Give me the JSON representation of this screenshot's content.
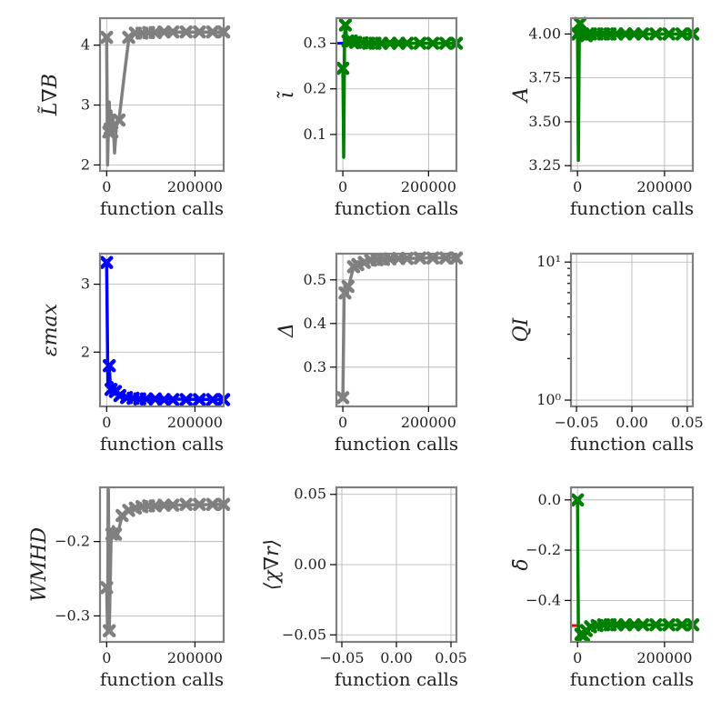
{
  "colors": {
    "gray": "#808080",
    "green": "#008000",
    "blue": "#0000ff",
    "red": "#ff0000"
  },
  "chart_data": [
    {
      "type": "line",
      "ylabel": "L̃∇B",
      "xlabel": "function calls",
      "xlim": [
        -15000,
        265000
      ],
      "ylim": [
        1.9,
        4.45
      ],
      "xticks": [
        0,
        200000
      ],
      "xtick_labels": [
        "0",
        "200000"
      ],
      "yticks": [
        2,
        3,
        4
      ],
      "ytick_labels": [
        "2",
        "3",
        "4"
      ],
      "grid": true,
      "series": [
        {
          "color": "#808080",
          "line": [
            [
              0,
              4.13
            ],
            [
              2000,
              2.0
            ],
            [
              4000,
              2.6
            ],
            [
              6000,
              3.05
            ],
            [
              8000,
              2.55
            ],
            [
              10000,
              2.9
            ],
            [
              12000,
              2.5
            ],
            [
              14000,
              2.8
            ],
            [
              18000,
              2.2
            ],
            [
              22000,
              2.65
            ],
            [
              28000,
              2.75
            ],
            [
              40000,
              3.5
            ],
            [
              50000,
              4.1
            ],
            [
              60000,
              4.17
            ],
            [
              75000,
              4.2
            ],
            [
              100000,
              4.21
            ],
            [
              130000,
              4.22
            ],
            [
              160000,
              4.22
            ],
            [
              200000,
              4.22
            ],
            [
              230000,
              4.22
            ],
            [
              265000,
              4.22
            ]
          ],
          "markers": [
            [
              0,
              4.13
            ],
            [
              5000,
              2.55
            ],
            [
              8000,
              2.6
            ],
            [
              12000,
              2.55
            ],
            [
              28000,
              2.75
            ],
            [
              50000,
              4.13
            ],
            [
              65000,
              4.2
            ],
            [
              80000,
              4.2
            ],
            [
              95000,
              4.21
            ],
            [
              110000,
              4.21
            ],
            [
              130000,
              4.22
            ],
            [
              150000,
              4.22
            ],
            [
              180000,
              4.22
            ],
            [
              210000,
              4.22
            ],
            [
              240000,
              4.22
            ],
            [
              265000,
              4.22
            ]
          ]
        }
      ]
    },
    {
      "type": "line",
      "ylabel": "ι̃",
      "xlabel": "function calls",
      "xlim": [
        -15000,
        265000
      ],
      "ylim": [
        0.02,
        0.355
      ],
      "xticks": [
        0,
        200000
      ],
      "xtick_labels": [
        "0",
        "200000"
      ],
      "yticks": [
        0.1,
        0.2,
        0.3
      ],
      "ytick_labels": [
        "0.1",
        "0.2",
        "0.3"
      ],
      "grid": true,
      "target": {
        "value": 0.3,
        "color": "#0000ff",
        "x": [
          -15000,
          0
        ]
      },
      "series": [
        {
          "color": "#008000",
          "line": [
            [
              0,
              0.245
            ],
            [
              2000,
              0.05
            ],
            [
              4000,
              0.31
            ],
            [
              6000,
              0.34
            ],
            [
              10000,
              0.3
            ],
            [
              15000,
              0.31
            ],
            [
              20000,
              0.305
            ],
            [
              30000,
              0.302
            ],
            [
              40000,
              0.301
            ],
            [
              60000,
              0.3
            ],
            [
              100000,
              0.3
            ],
            [
              265000,
              0.3
            ]
          ],
          "markers": [
            [
              0,
              0.245
            ],
            [
              6000,
              0.34
            ],
            [
              12000,
              0.305
            ],
            [
              20000,
              0.305
            ],
            [
              30000,
              0.302
            ],
            [
              45000,
              0.301
            ],
            [
              60000,
              0.3
            ],
            [
              75000,
              0.3
            ],
            [
              90000,
              0.3
            ],
            [
              110000,
              0.3
            ],
            [
              130000,
              0.3
            ],
            [
              150000,
              0.3
            ],
            [
              180000,
              0.3
            ],
            [
              210000,
              0.3
            ],
            [
              240000,
              0.3
            ],
            [
              265000,
              0.3
            ]
          ]
        }
      ]
    },
    {
      "type": "line",
      "ylabel": "A",
      "xlabel": "function calls",
      "xlim": [
        -15000,
        265000
      ],
      "ylim": [
        3.22,
        4.09
      ],
      "xticks": [
        0,
        200000
      ],
      "xtick_labels": [
        "0",
        "200000"
      ],
      "yticks": [
        3.25,
        3.5,
        3.75,
        4.0
      ],
      "ytick_labels": [
        "3.25",
        "3.50",
        "3.75",
        "4.00"
      ],
      "grid": true,
      "series": [
        {
          "color": "#008000",
          "line": [
            [
              0,
              4.0
            ],
            [
              2000,
              3.28
            ],
            [
              4000,
              3.95
            ],
            [
              6000,
              4.06
            ],
            [
              10000,
              3.98
            ],
            [
              15000,
              4.02
            ],
            [
              20000,
              3.99
            ],
            [
              30000,
              4.0
            ],
            [
              265000,
              4.0
            ]
          ],
          "markers": [
            [
              0,
              4.0
            ],
            [
              6000,
              4.06
            ],
            [
              12000,
              4.0
            ],
            [
              20000,
              3.99
            ],
            [
              30000,
              4.0
            ],
            [
              45000,
              4.0
            ],
            [
              60000,
              4.0
            ],
            [
              75000,
              4.0
            ],
            [
              90000,
              4.0
            ],
            [
              110000,
              4.0
            ],
            [
              130000,
              4.0
            ],
            [
              150000,
              4.0
            ],
            [
              180000,
              4.0
            ],
            [
              210000,
              4.0
            ],
            [
              240000,
              4.0
            ],
            [
              265000,
              4.0
            ]
          ]
        }
      ]
    },
    {
      "type": "line",
      "ylabel": "εmax",
      "xlabel": "function calls",
      "xlim": [
        -15000,
        265000
      ],
      "ylim": [
        1.2,
        3.45
      ],
      "xticks": [
        0,
        200000
      ],
      "xtick_labels": [
        "0",
        "200000"
      ],
      "yticks": [
        2,
        3
      ],
      "ytick_labels": [
        "2",
        "3"
      ],
      "grid": true,
      "series": [
        {
          "color": "#0000ff",
          "line": [
            [
              0,
              3.3
            ],
            [
              3000,
              1.5
            ],
            [
              6000,
              1.8
            ],
            [
              9000,
              1.4
            ],
            [
              12000,
              1.55
            ],
            [
              20000,
              1.45
            ],
            [
              30000,
              1.38
            ],
            [
              45000,
              1.34
            ],
            [
              60000,
              1.32
            ],
            [
              100000,
              1.31
            ],
            [
              265000,
              1.3
            ]
          ],
          "markers": [
            [
              0,
              3.32
            ],
            [
              6000,
              1.8
            ],
            [
              10000,
              1.45
            ],
            [
              20000,
              1.42
            ],
            [
              30000,
              1.36
            ],
            [
              45000,
              1.33
            ],
            [
              60000,
              1.32
            ],
            [
              75000,
              1.31
            ],
            [
              90000,
              1.31
            ],
            [
              110000,
              1.31
            ],
            [
              130000,
              1.3
            ],
            [
              150000,
              1.3
            ],
            [
              180000,
              1.3
            ],
            [
              210000,
              1.3
            ],
            [
              240000,
              1.3
            ],
            [
              265000,
              1.3
            ]
          ]
        }
      ]
    },
    {
      "type": "line",
      "ylabel": "Δ",
      "xlabel": "function calls",
      "xlim": [
        -15000,
        265000
      ],
      "ylim": [
        0.21,
        0.56
      ],
      "xticks": [
        0,
        200000
      ],
      "xtick_labels": [
        "0",
        "200000"
      ],
      "yticks": [
        0.3,
        0.4,
        0.5
      ],
      "ytick_labels": [
        "0.3",
        "0.4",
        "0.5"
      ],
      "grid": true,
      "series": [
        {
          "color": "#808080",
          "line": [
            [
              0,
              0.23
            ],
            [
              3000,
              0.47
            ],
            [
              6000,
              0.49
            ],
            [
              10000,
              0.465
            ],
            [
              15000,
              0.49
            ],
            [
              25000,
              0.53
            ],
            [
              35000,
              0.535
            ],
            [
              50000,
              0.54
            ],
            [
              70000,
              0.545
            ],
            [
              100000,
              0.547
            ],
            [
              150000,
              0.549
            ],
            [
              200000,
              0.55
            ],
            [
              265000,
              0.55
            ]
          ],
          "markers": [
            [
              0,
              0.23
            ],
            [
              5000,
              0.47
            ],
            [
              12000,
              0.485
            ],
            [
              25000,
              0.53
            ],
            [
              35000,
              0.535
            ],
            [
              50000,
              0.54
            ],
            [
              65000,
              0.545
            ],
            [
              80000,
              0.546
            ],
            [
              95000,
              0.547
            ],
            [
              110000,
              0.548
            ],
            [
              130000,
              0.549
            ],
            [
              150000,
              0.549
            ],
            [
              180000,
              0.55
            ],
            [
              210000,
              0.55
            ],
            [
              240000,
              0.55
            ],
            [
              265000,
              0.55
            ]
          ]
        }
      ]
    },
    {
      "type": "line",
      "yscale": "log",
      "ylabel": "QI",
      "xlabel": "function calls",
      "xlim": [
        -0.055,
        0.055
      ],
      "ylim": [
        0.9,
        11.5
      ],
      "xticks": [
        -0.05,
        0.0,
        0.05
      ],
      "xtick_labels": [
        "−0.05",
        "0.00",
        "0.05"
      ],
      "yticks": [
        1,
        10
      ],
      "ytick_labels": [
        "10⁰",
        "10¹"
      ],
      "grid": true,
      "series": []
    },
    {
      "type": "line",
      "ylabel": "WMHD",
      "xlabel": "function calls",
      "xlim": [
        -15000,
        265000
      ],
      "ylim": [
        -0.335,
        -0.127
      ],
      "xticks": [
        0,
        200000
      ],
      "xtick_labels": [
        "0",
        "200000"
      ],
      "yticks": [
        -0.3,
        -0.2
      ],
      "ytick_labels": [
        "−0.3",
        "−0.2"
      ],
      "grid": true,
      "series": [
        {
          "color": "#808080",
          "line": [
            [
              0,
              -0.26
            ],
            [
              2000,
              -0.32
            ],
            [
              4000,
              -0.13
            ],
            [
              6000,
              -0.32
            ],
            [
              10000,
              -0.2
            ],
            [
              15000,
              -0.18
            ],
            [
              25000,
              -0.19
            ],
            [
              35000,
              -0.165
            ],
            [
              50000,
              -0.158
            ],
            [
              70000,
              -0.154
            ],
            [
              100000,
              -0.152
            ],
            [
              150000,
              -0.151
            ],
            [
              265000,
              -0.15
            ]
          ],
          "markers": [
            [
              0,
              -0.262
            ],
            [
              6000,
              -0.32
            ],
            [
              12000,
              -0.19
            ],
            [
              20000,
              -0.19
            ],
            [
              35000,
              -0.165
            ],
            [
              50000,
              -0.158
            ],
            [
              65000,
              -0.155
            ],
            [
              80000,
              -0.153
            ],
            [
              95000,
              -0.152
            ],
            [
              110000,
              -0.152
            ],
            [
              130000,
              -0.151
            ],
            [
              150000,
              -0.151
            ],
            [
              180000,
              -0.15
            ],
            [
              210000,
              -0.15
            ],
            [
              240000,
              -0.15
            ],
            [
              265000,
              -0.15
            ]
          ]
        }
      ]
    },
    {
      "type": "line",
      "ylabel": "⟨χ∇r⟩",
      "xlabel": "function calls",
      "xlim": [
        -0.055,
        0.055
      ],
      "ylim": [
        -0.055,
        0.055
      ],
      "xticks": [
        -0.05,
        0.0,
        0.05
      ],
      "xtick_labels": [
        "−0.05",
        "0.00",
        "0.05"
      ],
      "yticks": [
        -0.05,
        0.0,
        0.05
      ],
      "ytick_labels": [
        "−0.05",
        "0.00",
        "0.05"
      ],
      "grid": true,
      "series": []
    },
    {
      "type": "line",
      "ylabel": "δ̄",
      "xlabel": "function calls",
      "xlim": [
        -15000,
        265000
      ],
      "ylim": [
        -0.565,
        0.05
      ],
      "xticks": [
        0,
        200000
      ],
      "xtick_labels": [
        "0",
        "200000"
      ],
      "yticks": [
        -0.4,
        -0.2,
        0.0
      ],
      "ytick_labels": [
        "−0.4",
        "−0.2",
        "0.0"
      ],
      "grid": true,
      "target": {
        "value": -0.5,
        "color": "#ff0000",
        "x": [
          -15000,
          0
        ]
      },
      "series": [
        {
          "color": "#008000",
          "line": [
            [
              0,
              0.0
            ],
            [
              2000,
              -0.5
            ],
            [
              4000,
              -0.54
            ],
            [
              8000,
              -0.535
            ],
            [
              12000,
              -0.54
            ],
            [
              20000,
              -0.52
            ],
            [
              30000,
              -0.505
            ],
            [
              45000,
              -0.5
            ],
            [
              60000,
              -0.497
            ],
            [
              100000,
              -0.497
            ],
            [
              265000,
              -0.497
            ]
          ],
          "markers": [
            [
              0,
              0.0
            ],
            [
              8000,
              -0.535
            ],
            [
              14000,
              -0.54
            ],
            [
              20000,
              -0.52
            ],
            [
              30000,
              -0.505
            ],
            [
              45000,
              -0.5
            ],
            [
              60000,
              -0.497
            ],
            [
              75000,
              -0.497
            ],
            [
              90000,
              -0.497
            ],
            [
              110000,
              -0.497
            ],
            [
              130000,
              -0.497
            ],
            [
              150000,
              -0.497
            ],
            [
              180000,
              -0.497
            ],
            [
              210000,
              -0.497
            ],
            [
              240000,
              -0.497
            ],
            [
              265000,
              -0.497
            ]
          ]
        }
      ]
    }
  ]
}
